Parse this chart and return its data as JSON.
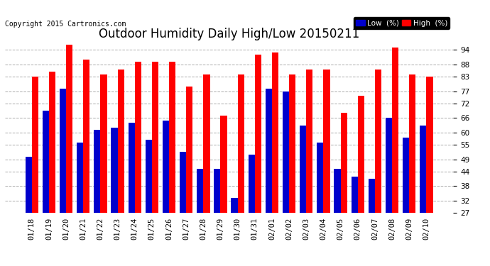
{
  "title": "Outdoor Humidity Daily High/Low 20150211",
  "copyright": "Copyright 2015 Cartronics.com",
  "legend_low_label": "Low  (%)",
  "legend_high_label": "High  (%)",
  "dates": [
    "01/18",
    "01/19",
    "01/20",
    "01/21",
    "01/22",
    "01/23",
    "01/24",
    "01/25",
    "01/26",
    "01/27",
    "01/28",
    "01/29",
    "01/30",
    "01/31",
    "02/01",
    "02/02",
    "02/03",
    "02/04",
    "02/05",
    "02/06",
    "02/07",
    "02/08",
    "02/09",
    "02/10"
  ],
  "high_values": [
    83,
    85,
    96,
    90,
    84,
    86,
    89,
    89,
    89,
    79,
    84,
    67,
    84,
    92,
    93,
    84,
    86,
    86,
    68,
    75,
    86,
    95,
    84,
    83
  ],
  "low_values": [
    50,
    69,
    78,
    56,
    61,
    62,
    64,
    57,
    65,
    52,
    45,
    45,
    33,
    51,
    78,
    77,
    63,
    56,
    45,
    42,
    41,
    66,
    58,
    63
  ],
  "bar_width": 0.38,
  "ylim_min": 27,
  "ylim_max": 97,
  "yticks": [
    27,
    32,
    38,
    44,
    49,
    55,
    60,
    66,
    72,
    77,
    83,
    88,
    94
  ],
  "bg_color": "#ffffff",
  "plot_bg_color": "#ffffff",
  "grid_color": "#aaaaaa",
  "high_color": "#ff0000",
  "low_color": "#0000cc",
  "title_fontsize": 12,
  "tick_fontsize": 7.5,
  "copyright_fontsize": 7,
  "legend_fontsize": 7.5,
  "bar_bottom": 27
}
